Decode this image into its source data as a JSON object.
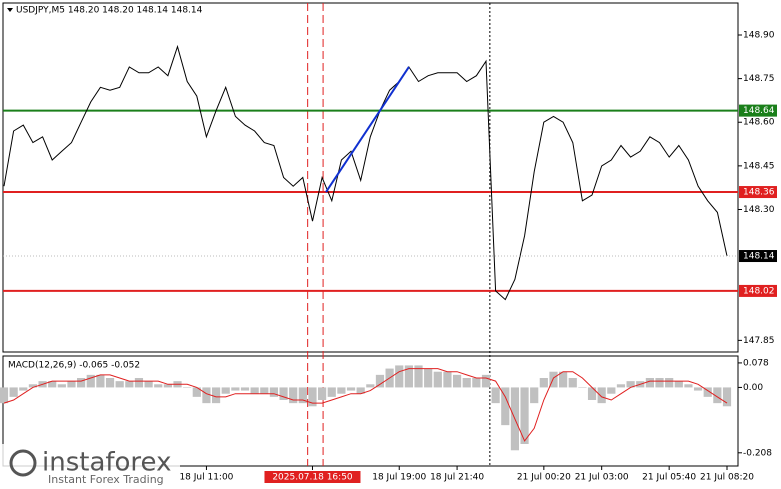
{
  "chart_data": [
    {
      "type": "line",
      "title": "USDJPY,M5  148.20 148.20 148.14 148.14",
      "color": "#000000",
      "values": [
        148.38,
        148.57,
        148.59,
        148.53,
        148.55,
        148.47,
        148.5,
        148.53,
        148.6,
        148.67,
        148.72,
        148.71,
        148.72,
        148.79,
        148.77,
        148.77,
        148.79,
        148.76,
        148.86,
        148.74,
        148.69,
        148.55,
        148.64,
        148.72,
        148.62,
        148.59,
        148.57,
        148.53,
        148.52,
        148.41,
        148.38,
        148.41,
        148.26,
        148.41,
        148.33,
        148.47,
        148.5,
        148.4,
        148.55,
        148.64,
        148.71,
        148.74,
        148.79,
        148.74,
        148.76,
        148.77,
        148.77,
        148.77,
        148.74,
        148.76,
        148.81,
        148.02,
        147.99,
        148.06,
        148.21,
        148.43,
        148.6,
        148.62,
        148.6,
        148.53,
        148.33,
        148.35,
        148.45,
        148.47,
        148.52,
        148.48,
        148.5,
        148.55,
        148.53,
        148.48,
        148.52,
        148.47,
        148.38,
        148.33,
        148.29,
        148.14
      ],
      "xlim": [
        0,
        75
      ],
      "ylim": [
        147.81,
        149.01
      ],
      "yticks": [
        {
          "value": 147.85,
          "label": "147.85"
        },
        {
          "value": 148.3,
          "label": "148.30"
        },
        {
          "value": 148.45,
          "label": "148.45"
        },
        {
          "value": 148.6,
          "label": "148.60"
        },
        {
          "value": 148.75,
          "label": "148.75"
        },
        {
          "value": 148.9,
          "label": "148.90"
        }
      ],
      "levels": [
        {
          "value": 148.64,
          "color": "#1a7f1a"
        },
        {
          "value": 148.36,
          "color": "#e02020"
        },
        {
          "value": 148.02,
          "color": "#e02020"
        }
      ],
      "last_price": 148.14,
      "trend_line": {
        "color": "#1030d0",
        "x": [
          33.4,
          42
        ],
        "y": [
          148.36,
          148.79
        ]
      },
      "vlines": [
        {
          "value": 31.5,
          "color": "#e02020",
          "style": "dash"
        },
        {
          "value": 33.1,
          "color": "#e02020",
          "style": "dash"
        },
        {
          "value": 50.4,
          "color": "#000000",
          "style": "dot"
        }
      ]
    },
    {
      "type": "bar",
      "title": "MACD(12,26,9) -0.065 -0.052",
      "series": [
        {
          "color": "#c0c0c0",
          "values": [
            -0.05,
            -0.03,
            -0.01,
            0.01,
            0.02,
            0.02,
            0.01,
            0.02,
            0.03,
            0.04,
            0.04,
            0.03,
            0.02,
            0.02,
            0.03,
            0.02,
            0.01,
            0.01,
            0.02,
            0,
            -0.03,
            -0.05,
            -0.05,
            -0.02,
            -0.01,
            -0.01,
            -0.02,
            -0.02,
            -0.03,
            -0.04,
            -0.05,
            -0.05,
            -0.06,
            -0.04,
            -0.03,
            -0.02,
            -0.01,
            -0.02,
            0.01,
            0.04,
            0.06,
            0.07,
            0.07,
            0.07,
            0.06,
            0.05,
            0.05,
            0.04,
            0.03,
            0.03,
            0.04,
            -0.05,
            -0.12,
            -0.2,
            -0.18,
            -0.05,
            0.03,
            0.05,
            0.05,
            0.03,
            0,
            -0.04,
            -0.05,
            -0.02,
            0.01,
            0.02,
            0.02,
            0.03,
            0.03,
            0.03,
            0.02,
            0.01,
            -0.01,
            -0.03,
            -0.05,
            -0.06
          ]
        },
        {
          "type": "line",
          "color": "#e02020",
          "values": [
            -0.05,
            -0.04,
            -0.02,
            0,
            0.01,
            0.02,
            0.02,
            0.02,
            0.02,
            0.03,
            0.04,
            0.04,
            0.03,
            0.02,
            0.02,
            0.02,
            0.02,
            0.01,
            0.01,
            0.01,
            0,
            -0.02,
            -0.03,
            -0.03,
            -0.02,
            -0.02,
            -0.02,
            -0.02,
            -0.02,
            -0.03,
            -0.04,
            -0.04,
            -0.05,
            -0.05,
            -0.04,
            -0.03,
            -0.02,
            -0.02,
            -0.01,
            0.01,
            0.03,
            0.05,
            0.06,
            0.06,
            0.06,
            0.06,
            0.05,
            0.05,
            0.04,
            0.03,
            0.03,
            0.02,
            -0.03,
            -0.1,
            -0.17,
            -0.13,
            -0.04,
            0.03,
            0.05,
            0.05,
            0.03,
            0,
            -0.03,
            -0.04,
            -0.02,
            0,
            0.01,
            0.02,
            0.02,
            0.02,
            0.02,
            0.02,
            0.01,
            -0.01,
            -0.03,
            -0.05
          ]
        }
      ],
      "xlim": [
        0,
        75
      ],
      "ylim": [
        -0.25,
        0.1
      ],
      "yticks": [
        -0.208,
        {
          "value": 0,
          "label": "0.00"
        },
        0.078
      ],
      "xticks": [
        {
          "value": 21,
          "label": "18 Jul 11:00"
        },
        {
          "value": 32,
          "label": "2025.07.18 16:50",
          "highlight": "#e02020"
        },
        {
          "value": 41,
          "label": "18 Jul 19:00"
        },
        {
          "value": 47,
          "label": "18 Jul 21:40"
        },
        {
          "value": 56,
          "label": "21 Jul 00:20"
        },
        {
          "value": 62,
          "label": "21 Jul 03:00"
        },
        {
          "value": 69,
          "label": "21 Jul 05:40"
        },
        {
          "value": 75,
          "label": "21 Jul 08:20"
        }
      ]
    }
  ],
  "watermark": {
    "brand": "instaforex",
    "tagline": "Instant Forex Trading"
  }
}
